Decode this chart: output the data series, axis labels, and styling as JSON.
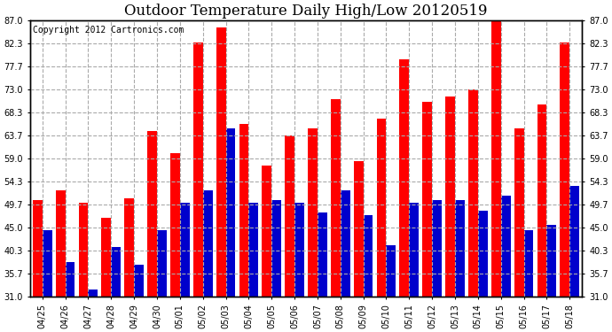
{
  "title": "Outdoor Temperature Daily High/Low 20120519",
  "copyright_text": "Copyright 2012 Cartronics.com",
  "dates": [
    "04/25",
    "04/26",
    "04/27",
    "04/28",
    "04/29",
    "04/30",
    "05/01",
    "05/02",
    "05/03",
    "05/04",
    "05/05",
    "05/06",
    "05/07",
    "05/08",
    "05/09",
    "05/10",
    "05/11",
    "05/12",
    "05/13",
    "05/14",
    "05/15",
    "05/16",
    "05/17",
    "05/18"
  ],
  "highs": [
    50.5,
    52.5,
    50.0,
    47.0,
    51.0,
    64.5,
    60.0,
    82.5,
    85.5,
    66.0,
    57.5,
    63.7,
    65.0,
    71.0,
    58.5,
    67.0,
    79.0,
    70.5,
    71.5,
    73.0,
    87.0,
    65.0,
    70.0,
    82.5
  ],
  "lows": [
    44.5,
    38.0,
    32.5,
    41.0,
    37.5,
    44.5,
    50.0,
    52.5,
    65.0,
    50.0,
    50.5,
    50.0,
    48.0,
    52.5,
    47.5,
    41.5,
    50.0,
    50.5,
    50.5,
    48.5,
    51.5,
    44.5,
    45.5,
    53.5
  ],
  "yticks": [
    31.0,
    35.7,
    40.3,
    45.0,
    49.7,
    54.3,
    59.0,
    63.7,
    68.3,
    73.0,
    77.7,
    82.3,
    87.0
  ],
  "ylim": [
    31.0,
    87.0
  ],
  "bar_width": 0.42,
  "high_color": "#ff0000",
  "low_color": "#0000cc",
  "bg_color": "#ffffff",
  "grid_color": "#aaaaaa",
  "title_fontsize": 12,
  "copyright_fontsize": 7,
  "tick_fontsize": 7
}
